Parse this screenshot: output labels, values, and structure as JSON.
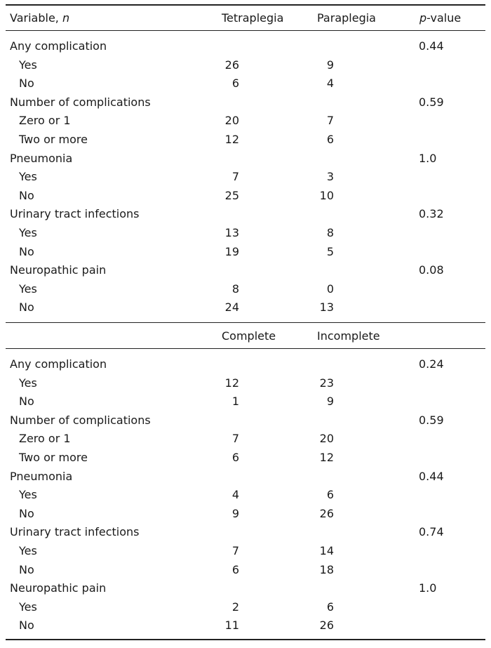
{
  "header": {
    "variable": "Variable,",
    "n": "n",
    "col1": "Tetraplegia",
    "col2": "Paraplegia",
    "p": "p",
    "pvalue_suffix": "-value"
  },
  "section1": [
    {
      "label": "Any complication",
      "p": "0.44"
    },
    {
      "label": "Yes",
      "a": "26",
      "b": "9"
    },
    {
      "label": "No",
      "a": "6",
      "b": "4"
    },
    {
      "label": "Number of complications",
      "p": "0.59"
    },
    {
      "label": "Zero or 1",
      "a": "20",
      "b": "7"
    },
    {
      "label": "Two or more",
      "a": "12",
      "b": "6"
    },
    {
      "label": "Pneumonia",
      "p": "1.0"
    },
    {
      "label": "Yes",
      "a": "7",
      "b": "3"
    },
    {
      "label": "No",
      "a": "25",
      "b": "10"
    },
    {
      "label": "Urinary tract infections",
      "p": "0.32"
    },
    {
      "label": "Yes",
      "a": "13",
      "b": "8"
    },
    {
      "label": "No",
      "a": "19",
      "b": "5"
    },
    {
      "label": "Neuropathic pain",
      "p": "0.08"
    },
    {
      "label": "Yes",
      "a": "8",
      "b": "0"
    },
    {
      "label": "No",
      "a": "24",
      "b": "13"
    }
  ],
  "subheader": {
    "col1": "Complete",
    "col2": "Incomplete"
  },
  "section2": [
    {
      "label": "Any complication",
      "p": "0.24"
    },
    {
      "label": "Yes",
      "a": "12",
      "b": "23"
    },
    {
      "label": "No",
      "a": "1",
      "b": "9"
    },
    {
      "label": "Number of complications",
      "p": "0.59"
    },
    {
      "label": "Zero or 1",
      "a": "7",
      "b": "20"
    },
    {
      "label": "Two or more",
      "a": "6",
      "b": "12"
    },
    {
      "label": "Pneumonia",
      "p": "0.44"
    },
    {
      "label": "Yes",
      "a": "4",
      "b": "6"
    },
    {
      "label": "No",
      "a": "9",
      "b": "26"
    },
    {
      "label": "Urinary tract infections",
      "p": "0.74"
    },
    {
      "label": "Yes",
      "a": "7",
      "b": "14"
    },
    {
      "label": "No",
      "a": "6",
      "b": "18"
    },
    {
      "label": "Neuropathic pain",
      "p": "1.0"
    },
    {
      "label": "Yes",
      "a": "2",
      "b": "6"
    },
    {
      "label": "No",
      "a": "11",
      "b": "26"
    }
  ]
}
